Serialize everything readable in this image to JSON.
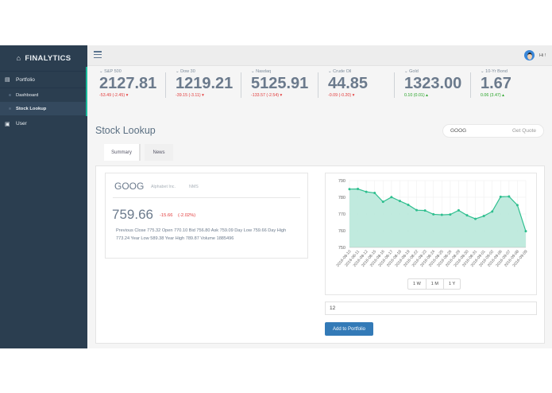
{
  "brand": {
    "title": "FINALYTICS",
    "icon": "home-icon"
  },
  "sidebar": {
    "items": [
      {
        "label": "Portfolio",
        "icon": "area-chart-icon"
      },
      {
        "label": "Dashboard"
      },
      {
        "label": "Stock Lookup",
        "active": true
      },
      {
        "label": "User",
        "icon": "user-icon"
      }
    ]
  },
  "header": {
    "greeting": "Hi !"
  },
  "tickers": [
    {
      "label": "S&P 500",
      "value": "2127.81",
      "change": "-53.49 (-2.45)",
      "direction": "down"
    },
    {
      "label": "Dow 30",
      "value": "1219.21",
      "change": "-39.15 (-3.11)",
      "direction": "down"
    },
    {
      "label": "Nasdaq",
      "value": "5125.91",
      "change": "-133.57 (-2.54)",
      "direction": "down"
    },
    {
      "label": "Crude Oil",
      "value": "44.85",
      "change": "-0.09 (-0.20)",
      "direction": "down"
    },
    {
      "label": "Gold",
      "value": "1323.00",
      "change": "0.10 (0.01)",
      "direction": "up"
    },
    {
      "label": "10-Yr Bond",
      "value": "1.67",
      "change": "0.06 (3.47)",
      "direction": "up"
    }
  ],
  "page": {
    "title": "Stock Lookup"
  },
  "search": {
    "value": "GOOG",
    "button": "Get Quote"
  },
  "tabs": [
    {
      "label": "Summary",
      "active": true
    },
    {
      "label": "News"
    }
  ],
  "quote": {
    "symbol": "GOOG",
    "name": "Alphabet Inc.",
    "exchange": "NMS",
    "price": "759.66",
    "change": "-15.66",
    "change_pct": "(-2.02%)",
    "details": "Previous Close 775.32 Open 770.10 Bid 756.80 Ask 759.09 Day Low 759.66 Day High 773.24 Year Low 589.38 Year High 789.87 Volume 1885496"
  },
  "ranges": [
    "1 W",
    "1 M",
    "1 Y"
  ],
  "quantity": {
    "value": "12"
  },
  "add_button": "Add to Portfolio",
  "colors": {
    "sidebar": "#2b3e50",
    "accent": "#1abb9c",
    "line": "#2fbf8f",
    "fill": "#b9e8da",
    "button": "#337ab7",
    "down": "#e23b3b",
    "up": "#27a327"
  },
  "chart_data": {
    "type": "area",
    "x": [
      "2016-08-10",
      "2016-08-11",
      "2016-08-12",
      "2016-08-15",
      "2016-08-16",
      "2016-08-17",
      "2016-08-18",
      "2016-08-19",
      "2016-08-22",
      "2016-08-23",
      "2016-08-24",
      "2016-08-25",
      "2016-08-26",
      "2016-08-29",
      "2016-08-30",
      "2016-08-31",
      "2016-09-01",
      "2016-09-02",
      "2016-09-06",
      "2016-09-07",
      "2016-09-08",
      "2016-09-09"
    ],
    "values": [
      784.9,
      785.0,
      783.3,
      782.6,
      777.3,
      780.1,
      777.8,
      775.5,
      772.3,
      772.1,
      769.8,
      769.5,
      769.7,
      772.2,
      769.2,
      767.1,
      768.8,
      771.5,
      780.3,
      780.5,
      775.3,
      759.7
    ],
    "ylim": [
      750,
      790
    ],
    "yticks": [
      750,
      760,
      770,
      780,
      790
    ],
    "grid": true
  }
}
